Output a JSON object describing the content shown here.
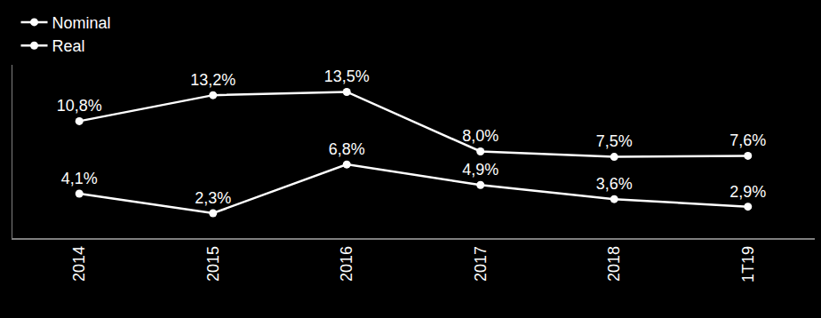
{
  "chart_data": {
    "type": "line",
    "categories": [
      "2014",
      "2015",
      "2016",
      "2017",
      "2018",
      "1T19"
    ],
    "series": [
      {
        "name": "Nominal",
        "color": "#ffffff",
        "values": [
          10.8,
          13.2,
          13.5,
          8.0,
          7.5,
          7.6
        ],
        "value_labels": [
          "10,8%",
          "13,2%",
          "13,5%",
          "8,0%",
          "7,5%",
          "7,6%"
        ]
      },
      {
        "name": "Real",
        "color": "#ffffff",
        "values": [
          4.1,
          2.3,
          6.8,
          4.9,
          3.6,
          2.9
        ],
        "value_labels": [
          "4,1%",
          "2,3%",
          "6,8%",
          "4,9%",
          "3,6%",
          "2,9%"
        ]
      }
    ],
    "ylim": [
      0,
      16
    ],
    "yticks": [],
    "tick_labels": "x",
    "grid": false,
    "legend": "upper left",
    "data_labels": true,
    "marker": "circle",
    "line_style": "solid"
  }
}
